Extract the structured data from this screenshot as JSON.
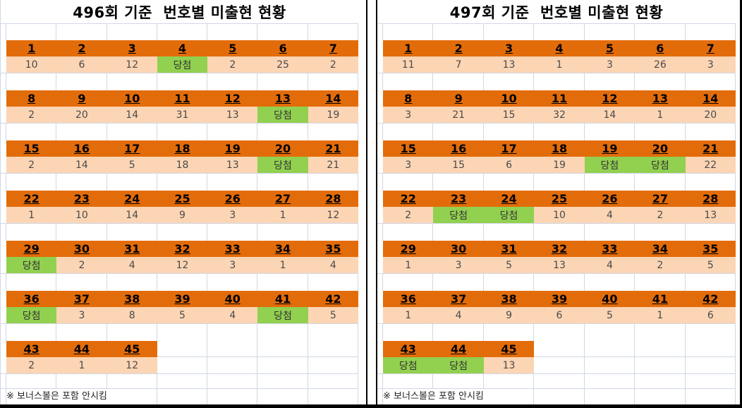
{
  "labels": {
    "win_label": "당첨"
  },
  "colors": {
    "header_fill": "#E36C0A",
    "value_fill": "#FCD5B4",
    "win_fill": "#92D050",
    "gridline": "#D0D7E5",
    "frame_border": "#000000"
  },
  "tables": [
    {
      "title": "496회 기준  번호별 미출현 현황",
      "footer_note": "※ 보너스볼은 포함 안시킴",
      "groups": [
        {
          "cells": [
            {
              "num": "1",
              "val": "10"
            },
            {
              "num": "2",
              "val": "6"
            },
            {
              "num": "3",
              "val": "12"
            },
            {
              "num": "4",
              "val": "당첨"
            },
            {
              "num": "5",
              "val": "2"
            },
            {
              "num": "6",
              "val": "25"
            },
            {
              "num": "7",
              "val": "2"
            }
          ]
        },
        {
          "cells": [
            {
              "num": "8",
              "val": "2"
            },
            {
              "num": "9",
              "val": "20"
            },
            {
              "num": "10",
              "val": "14"
            },
            {
              "num": "11",
              "val": "31"
            },
            {
              "num": "12",
              "val": "13"
            },
            {
              "num": "13",
              "val": "당첨"
            },
            {
              "num": "14",
              "val": "19"
            }
          ]
        },
        {
          "cells": [
            {
              "num": "15",
              "val": "2"
            },
            {
              "num": "16",
              "val": "14"
            },
            {
              "num": "17",
              "val": "5"
            },
            {
              "num": "18",
              "val": "18"
            },
            {
              "num": "19",
              "val": "13"
            },
            {
              "num": "20",
              "val": "당첨"
            },
            {
              "num": "21",
              "val": "21"
            }
          ]
        },
        {
          "cells": [
            {
              "num": "22",
              "val": "1"
            },
            {
              "num": "23",
              "val": "10"
            },
            {
              "num": "24",
              "val": "14"
            },
            {
              "num": "25",
              "val": "9"
            },
            {
              "num": "26",
              "val": "3"
            },
            {
              "num": "27",
              "val": "1"
            },
            {
              "num": "28",
              "val": "12"
            }
          ]
        },
        {
          "cells": [
            {
              "num": "29",
              "val": "당첨"
            },
            {
              "num": "30",
              "val": "2"
            },
            {
              "num": "31",
              "val": "4"
            },
            {
              "num": "32",
              "val": "12"
            },
            {
              "num": "33",
              "val": "3"
            },
            {
              "num": "34",
              "val": "1"
            },
            {
              "num": "35",
              "val": "4"
            }
          ]
        },
        {
          "cells": [
            {
              "num": "36",
              "val": "당첨"
            },
            {
              "num": "37",
              "val": "3"
            },
            {
              "num": "38",
              "val": "8"
            },
            {
              "num": "39",
              "val": "5"
            },
            {
              "num": "40",
              "val": "4"
            },
            {
              "num": "41",
              "val": "당첨"
            },
            {
              "num": "42",
              "val": "5"
            }
          ]
        },
        {
          "cells": [
            {
              "num": "43",
              "val": "2"
            },
            {
              "num": "44",
              "val": "1"
            },
            {
              "num": "45",
              "val": "12"
            }
          ]
        }
      ]
    },
    {
      "title": "497회 기준  번호별 미출현 현황",
      "footer_note": "※ 보너스볼은 포함 안시킴",
      "groups": [
        {
          "cells": [
            {
              "num": "1",
              "val": "11"
            },
            {
              "num": "2",
              "val": "7"
            },
            {
              "num": "3",
              "val": "13"
            },
            {
              "num": "4",
              "val": "1"
            },
            {
              "num": "5",
              "val": "3"
            },
            {
              "num": "6",
              "val": "26"
            },
            {
              "num": "7",
              "val": "3"
            }
          ]
        },
        {
          "cells": [
            {
              "num": "8",
              "val": "3"
            },
            {
              "num": "9",
              "val": "21"
            },
            {
              "num": "10",
              "val": "15"
            },
            {
              "num": "11",
              "val": "32"
            },
            {
              "num": "12",
              "val": "14"
            },
            {
              "num": "13",
              "val": "1"
            },
            {
              "num": "14",
              "val": "20"
            }
          ]
        },
        {
          "cells": [
            {
              "num": "15",
              "val": "3"
            },
            {
              "num": "16",
              "val": "15"
            },
            {
              "num": "17",
              "val": "6"
            },
            {
              "num": "18",
              "val": "19"
            },
            {
              "num": "19",
              "val": "당첨"
            },
            {
              "num": "20",
              "val": "당첨"
            },
            {
              "num": "21",
              "val": "22"
            }
          ]
        },
        {
          "cells": [
            {
              "num": "22",
              "val": "2"
            },
            {
              "num": "23",
              "val": "당첨"
            },
            {
              "num": "24",
              "val": "당첨"
            },
            {
              "num": "25",
              "val": "10"
            },
            {
              "num": "26",
              "val": "4"
            },
            {
              "num": "27",
              "val": "2"
            },
            {
              "num": "28",
              "val": "13"
            }
          ]
        },
        {
          "cells": [
            {
              "num": "29",
              "val": "1"
            },
            {
              "num": "30",
              "val": "3"
            },
            {
              "num": "31",
              "val": "5"
            },
            {
              "num": "32",
              "val": "13"
            },
            {
              "num": "33",
              "val": "4"
            },
            {
              "num": "34",
              "val": "2"
            },
            {
              "num": "35",
              "val": "5"
            }
          ]
        },
        {
          "cells": [
            {
              "num": "36",
              "val": "1"
            },
            {
              "num": "37",
              "val": "4"
            },
            {
              "num": "38",
              "val": "9"
            },
            {
              "num": "39",
              "val": "6"
            },
            {
              "num": "40",
              "val": "5"
            },
            {
              "num": "41",
              "val": "1"
            },
            {
              "num": "42",
              "val": "6"
            }
          ]
        },
        {
          "cells": [
            {
              "num": "43",
              "val": "당첨"
            },
            {
              "num": "44",
              "val": "당첨"
            },
            {
              "num": "45",
              "val": "13"
            }
          ]
        }
      ]
    }
  ]
}
